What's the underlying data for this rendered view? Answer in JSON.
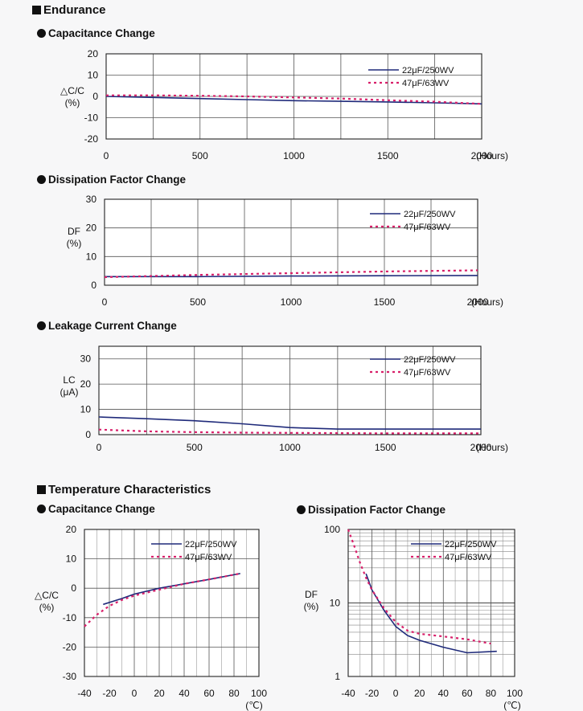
{
  "headings": {
    "endurance": "Endurance",
    "temperature": "Temperature Characteristics",
    "endurance_cap": "Capacitance Change",
    "endurance_df": "Dissipation Factor Change",
    "endurance_lc": "Leakage Current Change",
    "temp_cap": "Capacitance Change",
    "temp_df": "Dissipation Factor Change"
  },
  "colors": {
    "series_a": "#1f2a7a",
    "series_b": "#d8206a",
    "grid": "#555555"
  },
  "chart_data": [
    {
      "id": "endurance_cap",
      "type": "line",
      "title": "Capacitance Change",
      "ylabel_lines": [
        "△C/C",
        "(%)"
      ],
      "xlabel": "(Hours)",
      "xlim": [
        0,
        2000
      ],
      "ylim": [
        -20,
        20
      ],
      "xticks": [
        0,
        500,
        1000,
        1500,
        2000
      ],
      "yticks": [
        20,
        10,
        0,
        -10,
        -20
      ],
      "grid": true,
      "legend_position": "top-right",
      "series": [
        {
          "name": "22μF/250WV",
          "style": "solid",
          "x": [
            0,
            250,
            500,
            750,
            1000,
            1250,
            1500,
            1750,
            2000
          ],
          "y": [
            0,
            -0.5,
            -1,
            -1.5,
            -2,
            -2.3,
            -2.6,
            -3,
            -3.5
          ]
        },
        {
          "name": "47μF/63WV",
          "style": "dotted",
          "x": [
            0,
            250,
            500,
            750,
            1000,
            1250,
            1500,
            1750,
            2000
          ],
          "y": [
            0.5,
            0.5,
            0.3,
            0,
            -0.5,
            -1,
            -1.8,
            -2.5,
            -3.5
          ]
        }
      ]
    },
    {
      "id": "endurance_df",
      "type": "line",
      "title": "Dissipation Factor Change",
      "ylabel_lines": [
        "DF",
        "(%)"
      ],
      "xlabel": "(Hours)",
      "xlim": [
        0,
        2000
      ],
      "ylim": [
        0,
        30
      ],
      "xticks": [
        0,
        500,
        1000,
        1500,
        2000
      ],
      "yticks": [
        30,
        20,
        10,
        0
      ],
      "grid": true,
      "legend_position": "top-right",
      "series": [
        {
          "name": "22μF/250WV",
          "style": "solid",
          "x": [
            0,
            500,
            1000,
            1500,
            2000
          ],
          "y": [
            3,
            3,
            3.2,
            3.3,
            3.4
          ]
        },
        {
          "name": "47μF/63WV",
          "style": "dotted",
          "x": [
            0,
            500,
            1000,
            1500,
            2000
          ],
          "y": [
            2.8,
            3.6,
            4.2,
            4.8,
            5.2
          ]
        }
      ]
    },
    {
      "id": "endurance_lc",
      "type": "line",
      "title": "Leakage Current Change",
      "ylabel_lines": [
        "LC",
        "(μA)"
      ],
      "xlabel": "(Hours)",
      "xlim": [
        0,
        2000
      ],
      "ylim": [
        0,
        35
      ],
      "xticks": [
        0,
        500,
        1000,
        1500,
        2000
      ],
      "yticks": [
        30,
        20,
        10,
        0
      ],
      "grid": true,
      "legend_position": "top-right",
      "series": [
        {
          "name": "22μF/250WV",
          "style": "solid",
          "x": [
            0,
            250,
            500,
            750,
            1000,
            1250,
            1500,
            1750,
            2000
          ],
          "y": [
            7,
            6.3,
            5.5,
            4.3,
            2.8,
            2.2,
            2.2,
            2.2,
            2.2
          ]
        },
        {
          "name": "47μF/63WV",
          "style": "dotted",
          "x": [
            0,
            250,
            500,
            750,
            1000,
            1250,
            1500,
            1750,
            2000
          ],
          "y": [
            2,
            1.3,
            1,
            0.8,
            0.7,
            0.6,
            0.5,
            0.5,
            0.5
          ]
        }
      ]
    },
    {
      "id": "temp_cap",
      "type": "line",
      "title": "Capacitance Change",
      "ylabel_lines": [
        "△C/C",
        "(%)"
      ],
      "xlabel": "(℃)",
      "xlim": [
        -40,
        100
      ],
      "ylim": [
        -30,
        20
      ],
      "xticks": [
        -40,
        -20,
        0,
        20,
        40,
        60,
        80,
        100
      ],
      "yticks": [
        20,
        10,
        0,
        -10,
        -20,
        -30
      ],
      "grid": true,
      "legend_position": "top-right",
      "series": [
        {
          "name": "22μF/250WV",
          "style": "solid",
          "x": [
            -25,
            -10,
            0,
            20,
            40,
            60,
            85
          ],
          "y": [
            -5.5,
            -3.5,
            -2,
            0,
            1.5,
            3,
            5
          ]
        },
        {
          "name": "47μF/63WV",
          "style": "dotted",
          "x": [
            -40,
            -30,
            -20,
            -10,
            0,
            20,
            40,
            60,
            85
          ],
          "y": [
            -13,
            -9,
            -6,
            -4,
            -2.5,
            -0.5,
            1.5,
            3,
            5
          ]
        }
      ]
    },
    {
      "id": "temp_df",
      "type": "line",
      "title": "Dissipation Factor Change",
      "ylabel_lines": [
        "DF",
        "(%)"
      ],
      "xlabel": "(℃)",
      "xlim": [
        -40,
        100
      ],
      "ylim": [
        1,
        100
      ],
      "yscale": "log",
      "xticks": [
        -40,
        -20,
        0,
        20,
        40,
        60,
        80,
        100
      ],
      "yticks": [
        100,
        10,
        1
      ],
      "grid": true,
      "legend_position": "top-right",
      "series": [
        {
          "name": "22μF/250WV",
          "style": "solid",
          "x": [
            -25,
            -20,
            -10,
            0,
            10,
            20,
            40,
            60,
            85
          ],
          "y": [
            25,
            15,
            8,
            4.8,
            3.6,
            3.1,
            2.5,
            2.1,
            2.2
          ]
        },
        {
          "name": "47μF/63WV",
          "style": "dotted",
          "x": [
            -40,
            -35,
            -30,
            -25,
            -20,
            -10,
            0,
            10,
            20,
            40,
            60,
            80
          ],
          "y": [
            100,
            60,
            35,
            22,
            15,
            8.5,
            5.5,
            4.2,
            3.8,
            3.5,
            3.2,
            2.8
          ]
        }
      ]
    }
  ]
}
